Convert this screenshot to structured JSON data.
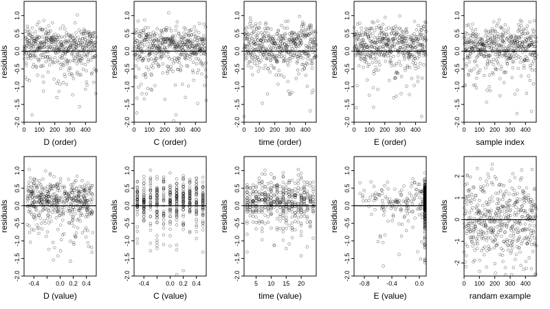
{
  "chart_data": [
    {
      "type": "scatter",
      "xlabel": "D (order)",
      "ylabel": "residuals",
      "xlim": [
        0,
        470
      ],
      "ylim": [
        -2.0,
        1.4
      ],
      "xticks": [
        0,
        100,
        200,
        300,
        400
      ],
      "xtick_labels": [
        "0",
        "100",
        "200",
        "300",
        "400"
      ],
      "yticks": [
        -2.0,
        -1.5,
        -1.0,
        -0.5,
        0.0,
        0.5,
        1.0
      ],
      "ytick_labels": [
        "-2.0",
        "-1.5",
        "-1.0",
        "-0.5",
        "0.0",
        "0.5",
        "1.0"
      ],
      "zero_line": true,
      "grid": false,
      "gen": {
        "seed": 11,
        "n": 470,
        "mode": "index"
      }
    },
    {
      "type": "scatter",
      "xlabel": "C (order)",
      "ylabel": "residuals",
      "xlim": [
        0,
        470
      ],
      "ylim": [
        -2.0,
        1.4
      ],
      "xticks": [
        0,
        100,
        200,
        300,
        400
      ],
      "xtick_labels": [
        "0",
        "100",
        "200",
        "300",
        "400"
      ],
      "yticks": [
        -2.0,
        -1.5,
        -1.0,
        -0.5,
        0.0,
        0.5,
        1.0
      ],
      "ytick_labels": [
        "-2.0",
        "-1.5",
        "-1.0",
        "-0.5",
        "0.0",
        "0.5",
        "1.0"
      ],
      "zero_line": true,
      "grid": false,
      "gen": {
        "seed": 23,
        "n": 470,
        "mode": "index"
      }
    },
    {
      "type": "scatter",
      "xlabel": "time (order)",
      "ylabel": "residuals",
      "xlim": [
        0,
        470
      ],
      "ylim": [
        -2.0,
        1.4
      ],
      "xticks": [
        0,
        100,
        200,
        300,
        400
      ],
      "xtick_labels": [
        "0",
        "100",
        "200",
        "300",
        "400"
      ],
      "yticks": [
        -2.0,
        -1.5,
        -1.0,
        -0.5,
        0.0,
        0.5,
        1.0
      ],
      "ytick_labels": [
        "-2.0",
        "-1.5",
        "-1.0",
        "-0.5",
        "0.0",
        "0.5",
        "1.0"
      ],
      "zero_line": true,
      "grid": false,
      "gen": {
        "seed": 37,
        "n": 470,
        "mode": "index"
      }
    },
    {
      "type": "scatter",
      "xlabel": "E (order)",
      "ylabel": "residuals",
      "xlim": [
        0,
        470
      ],
      "ylim": [
        -2.0,
        1.4
      ],
      "xticks": [
        0,
        100,
        200,
        300,
        400
      ],
      "xtick_labels": [
        "0",
        "100",
        "200",
        "300",
        "400"
      ],
      "yticks": [
        -2.0,
        -1.5,
        -1.0,
        -0.5,
        0.0,
        0.5,
        1.0
      ],
      "ytick_labels": [
        "-2.0",
        "-1.5",
        "-1.0",
        "-0.5",
        "0.0",
        "0.5",
        "1.0"
      ],
      "zero_line": true,
      "grid": false,
      "gen": {
        "seed": 41,
        "n": 470,
        "mode": "index"
      }
    },
    {
      "type": "scatter",
      "xlabel": "sample index",
      "ylabel": "residuals",
      "xlim": [
        0,
        470
      ],
      "ylim": [
        -2.0,
        1.4
      ],
      "xticks": [
        0,
        100,
        200,
        300,
        400
      ],
      "xtick_labels": [
        "0",
        "100",
        "200",
        "300",
        "400"
      ],
      "yticks": [
        -2.0,
        -1.5,
        -1.0,
        -0.5,
        0.0,
        0.5,
        1.0
      ],
      "ytick_labels": [
        "-2.0",
        "-1.5",
        "-1.0",
        "-0.5",
        "0.0",
        "0.5",
        "1.0"
      ],
      "zero_line": true,
      "grid": false,
      "gen": {
        "seed": 53,
        "n": 470,
        "mode": "index"
      }
    },
    {
      "type": "scatter",
      "xlabel": "D (value)",
      "ylabel": "residuals",
      "xlim": [
        -0.55,
        0.55
      ],
      "ylim": [
        -2.0,
        1.4
      ],
      "xticks": [
        -0.4,
        -0.2,
        0.0,
        0.2,
        0.4
      ],
      "xtick_labels": [
        "-0.4",
        "",
        "0.0",
        "0.2",
        "0.4"
      ],
      "yticks": [
        -2.0,
        -1.5,
        -1.0,
        -0.5,
        0.0,
        0.5,
        1.0
      ],
      "ytick_labels": [
        "-2.0",
        "-1.5",
        "-1.0",
        "-0.5",
        "0.0",
        "0.5",
        "1.0"
      ],
      "zero_line": true,
      "grid": false,
      "gen": {
        "seed": 61,
        "n": 470,
        "mode": "uniform",
        "xmin": -0.5,
        "xmax": 0.5
      }
    },
    {
      "type": "scatter",
      "xlabel": "C (value)",
      "ylabel": "residuals",
      "xlim": [
        -0.55,
        0.55
      ],
      "ylim": [
        -2.0,
        1.4
      ],
      "xticks": [
        -0.4,
        -0.2,
        0.0,
        0.2,
        0.4
      ],
      "xtick_labels": [
        "-0.4",
        "",
        "0.0",
        "0.2",
        "0.4"
      ],
      "yticks": [
        -2.0,
        -1.5,
        -1.0,
        -0.5,
        0.0,
        0.5,
        1.0
      ],
      "ytick_labels": [
        "-2.0",
        "-1.5",
        "-1.0",
        "-0.5",
        "0.0",
        "0.5",
        "1.0"
      ],
      "zero_line": true,
      "grid": false,
      "gen": {
        "seed": 71,
        "n": 470,
        "mode": "discrete",
        "levels": [
          -0.5,
          -0.4,
          -0.3,
          -0.2,
          -0.1,
          0.0,
          0.1,
          0.2,
          0.3,
          0.4,
          0.5
        ]
      }
    },
    {
      "type": "scatter",
      "xlabel": "time (value)",
      "ylabel": "residuals",
      "xlim": [
        1,
        25
      ],
      "ylim": [
        -2.0,
        1.4
      ],
      "xticks": [
        5,
        10,
        15,
        20
      ],
      "xtick_labels": [
        "5",
        "10",
        "15",
        "20"
      ],
      "yticks": [
        -2.0,
        -1.5,
        -1.0,
        -0.5,
        0.0,
        0.5,
        1.0
      ],
      "ytick_labels": [
        "-2.0",
        "-1.5",
        "-1.0",
        "-0.5",
        "0.0",
        "0.5",
        "1.0"
      ],
      "zero_line": true,
      "grid": false,
      "gen": {
        "seed": 83,
        "n": 470,
        "mode": "discrete",
        "levels": [
          2,
          3,
          4,
          5,
          6,
          7,
          8,
          9,
          10,
          11,
          12,
          13,
          14,
          15,
          16,
          17,
          18,
          19,
          20,
          21,
          22,
          23,
          24
        ]
      }
    },
    {
      "type": "scatter",
      "xlabel": "E (value)",
      "ylabel": "residuals",
      "xlim": [
        -0.95,
        0.1
      ],
      "ylim": [
        -2.0,
        1.4
      ],
      "xticks": [
        -0.8,
        -0.6,
        -0.4,
        -0.2,
        0.0
      ],
      "xtick_labels": [
        "-0.8",
        "",
        "-0.4",
        "",
        "0.0"
      ],
      "yticks": [
        -2.0,
        -1.5,
        -1.0,
        -0.5,
        0.0,
        0.5,
        1.0
      ],
      "ytick_labels": [
        "-2.0",
        "-1.5",
        "-1.0",
        "-0.5",
        "0.0",
        "0.5",
        "1.0"
      ],
      "zero_line": true,
      "grid": false,
      "gen": {
        "seed": 97,
        "n": 470,
        "mode": "skew",
        "xmin": -0.9,
        "xmax": 0.08
      }
    },
    {
      "type": "scatter",
      "xlabel": "randam example",
      "ylabel": "residuals",
      "xlim": [
        0,
        470
      ],
      "ylim": [
        -2.6,
        2.9
      ],
      "xticks": [
        0,
        100,
        200,
        300,
        400
      ],
      "xtick_labels": [
        "0",
        "100",
        "200",
        "300",
        "400"
      ],
      "yticks": [
        -2,
        -1,
        0,
        1,
        2
      ],
      "ytick_labels": [
        "-2",
        "-1",
        "0",
        "1",
        "2"
      ],
      "zero_line": true,
      "grid": false,
      "gen": {
        "seed": 101,
        "n": 470,
        "mode": "index",
        "dist": "normal"
      }
    }
  ]
}
